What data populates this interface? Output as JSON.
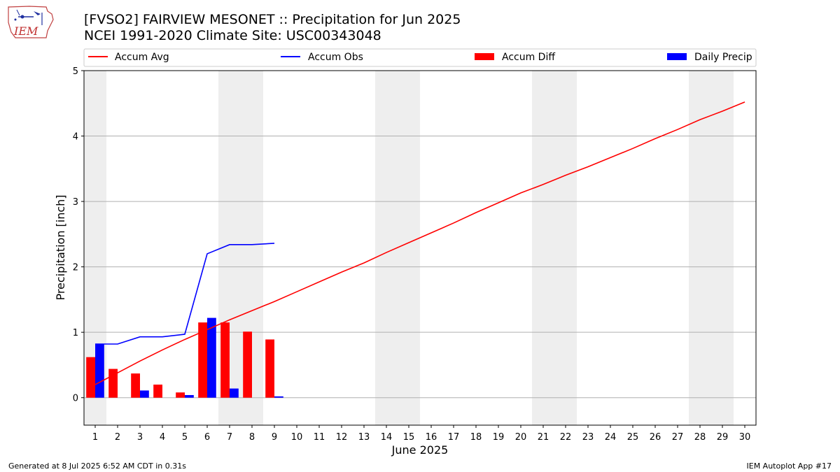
{
  "header": {
    "title_line1": "[FVSO2] FAIRVIEW MESONET :: Precipitation for Jun 2025",
    "title_line2": "NCEI 1991-2020 Climate Site: USC00343048",
    "logo_text": "IEM"
  },
  "footer": {
    "left": "Generated at 8 Jul 2025 6:52 AM CDT in 0.31s",
    "right": "IEM Autoplot App #17"
  },
  "colors": {
    "accum_avg": "#ff0000",
    "accum_obs": "#0000ff",
    "accum_diff": "#ff0000",
    "daily_precip": "#0000ff",
    "weekend_shade": "#eeeeee",
    "grid": "#b0b0b0"
  },
  "chart_data": {
    "type": "bar",
    "title": "[FVSO2] FAIRVIEW MESONET :: Precipitation for Jun 2025",
    "subtitle": "NCEI 1991-2020 Climate Site: USC00343048",
    "xlabel": "June 2025",
    "ylabel": "Precipitation [inch]",
    "ylim": [
      -0.42,
      5.0
    ],
    "xlim": [
      0.5,
      30.5
    ],
    "yticks": [
      0,
      1,
      2,
      3,
      4,
      5
    ],
    "xticks": [
      1,
      2,
      3,
      4,
      5,
      6,
      7,
      8,
      9,
      10,
      11,
      12,
      13,
      14,
      15,
      16,
      17,
      18,
      19,
      20,
      21,
      22,
      23,
      24,
      25,
      26,
      27,
      28,
      29,
      30
    ],
    "grid": "horizontal",
    "legend_placement": "top",
    "shaded_days": [
      [
        1,
        1
      ],
      [
        7,
        8
      ],
      [
        14,
        15
      ],
      [
        21,
        22
      ],
      [
        28,
        29
      ]
    ],
    "series": [
      {
        "name": "Accum Avg",
        "kind": "line",
        "x": [
          1,
          2,
          3,
          4,
          5,
          6,
          7,
          8,
          9,
          10,
          11,
          12,
          13,
          14,
          15,
          16,
          17,
          18,
          19,
          20,
          21,
          22,
          23,
          24,
          25,
          26,
          27,
          28,
          29,
          30
        ],
        "values": [
          0.2,
          0.38,
          0.56,
          0.73,
          0.89,
          1.04,
          1.19,
          1.33,
          1.47,
          1.62,
          1.77,
          1.92,
          2.06,
          2.22,
          2.37,
          2.52,
          2.67,
          2.83,
          2.98,
          3.13,
          3.26,
          3.4,
          3.53,
          3.67,
          3.81,
          3.96,
          4.1,
          4.25,
          4.38,
          4.52
        ]
      },
      {
        "name": "Accum Obs",
        "kind": "line",
        "x": [
          1,
          2,
          3,
          4,
          5,
          6,
          7,
          8,
          9
        ],
        "values": [
          0.82,
          0.82,
          0.93,
          0.93,
          0.97,
          2.2,
          2.34,
          2.34,
          2.36
        ]
      },
      {
        "name": "Accum Diff",
        "kind": "bar",
        "x": [
          1,
          2,
          3,
          4,
          5,
          6,
          7,
          8,
          9
        ],
        "values": [
          0.62,
          0.44,
          0.37,
          0.2,
          0.08,
          1.15,
          1.15,
          1.01,
          0.89
        ]
      },
      {
        "name": "Daily Precip",
        "kind": "bar",
        "x": [
          1,
          3,
          5,
          6,
          7,
          9
        ],
        "values": [
          0.82,
          0.11,
          0.04,
          1.22,
          0.14,
          0.02
        ]
      }
    ]
  }
}
